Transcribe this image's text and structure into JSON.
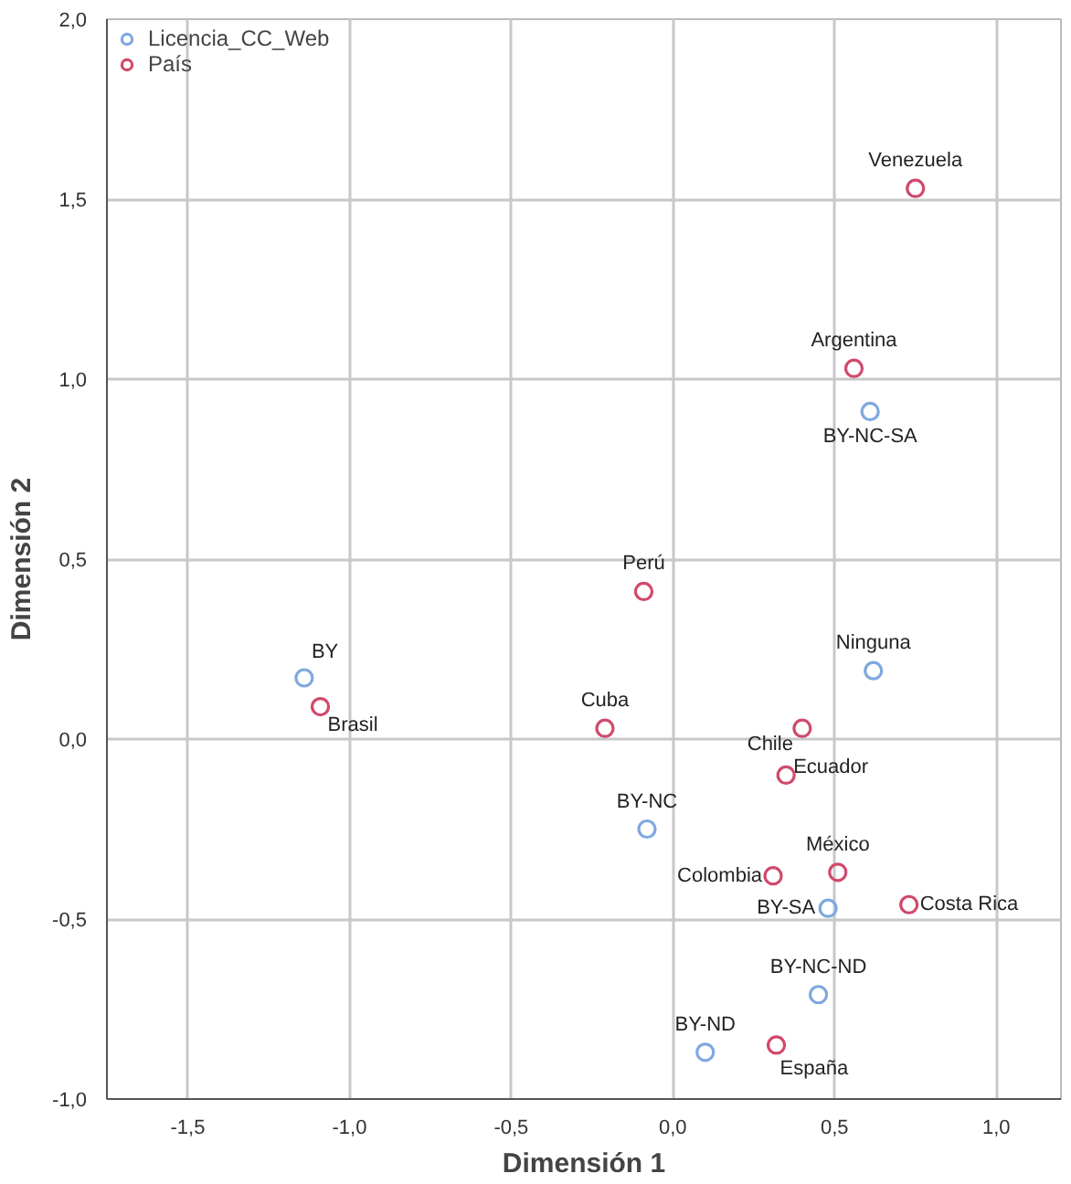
{
  "chart_data": {
    "type": "scatter",
    "xlabel": "Dimensión 1",
    "ylabel": "Dimensión 2",
    "xlim": [
      -1.75,
      1.2
    ],
    "ylim": [
      -1.0,
      2.0
    ],
    "xticks": [
      {
        "value": -1.5,
        "label": "-1,5"
      },
      {
        "value": -1.0,
        "label": "-1,0"
      },
      {
        "value": -0.5,
        "label": "-0,5"
      },
      {
        "value": 0.0,
        "label": "0,0"
      },
      {
        "value": 0.5,
        "label": "0,5"
      },
      {
        "value": 1.0,
        "label": "1,0"
      }
    ],
    "yticks": [
      {
        "value": -1.0,
        "label": "-1,0"
      },
      {
        "value": -0.5,
        "label": "-0,5"
      },
      {
        "value": 0.0,
        "label": "0,0"
      },
      {
        "value": 0.5,
        "label": "0,5"
      },
      {
        "value": 1.0,
        "label": "1,0"
      },
      {
        "value": 1.5,
        "label": "1,5"
      },
      {
        "value": 2.0,
        "label": "2,0"
      }
    ],
    "grid": true,
    "legend": "top left",
    "marker": "circle",
    "series": [
      {
        "name": "Licencia_CC_Web",
        "color": "#7fa8e0",
        "x": [
          -1.14,
          0.61,
          0.62,
          -0.08,
          0.48,
          0.45,
          0.1
        ],
        "values": [
          0.17,
          0.91,
          0.19,
          -0.25,
          -0.47,
          -0.71,
          -0.87
        ]
      },
      {
        "name": "País",
        "color": "#d1496b",
        "x": [
          0.75,
          0.56,
          -0.09,
          -1.09,
          -0.21,
          0.4,
          0.35,
          0.51,
          0.31,
          0.73,
          0.32
        ],
        "values": [
          1.53,
          1.03,
          0.41,
          0.09,
          0.03,
          0.03,
          -0.1,
          -0.37,
          -0.38,
          -0.46,
          -0.85
        ]
      }
    ],
    "annotations": [
      {
        "text": "BY",
        "x": -1.14,
        "y": 0.17
      },
      {
        "text": "BY-NC-SA",
        "x": 0.61,
        "y": 0.91
      },
      {
        "text": "Ninguna",
        "x": 0.62,
        "y": 0.19
      },
      {
        "text": "BY-NC",
        "x": -0.08,
        "y": -0.25
      },
      {
        "text": "BY-SA",
        "x": 0.48,
        "y": -0.47
      },
      {
        "text": "BY-NC-ND",
        "x": 0.45,
        "y": -0.71
      },
      {
        "text": "BY-ND",
        "x": 0.1,
        "y": -0.87
      },
      {
        "text": "Venezuela",
        "x": 0.75,
        "y": 1.53
      },
      {
        "text": "Argentina",
        "x": 0.56,
        "y": 1.03
      },
      {
        "text": "Perú",
        "x": -0.09,
        "y": 0.41
      },
      {
        "text": "Brasil",
        "x": -1.09,
        "y": 0.09
      },
      {
        "text": "Cuba",
        "x": -0.21,
        "y": 0.03
      },
      {
        "text": "Chile",
        "x": 0.4,
        "y": 0.03
      },
      {
        "text": "Ecuador",
        "x": 0.35,
        "y": -0.1
      },
      {
        "text": "México",
        "x": 0.51,
        "y": -0.37
      },
      {
        "text": "Colombia",
        "x": 0.31,
        "y": -0.38
      },
      {
        "text": "Costa Rica",
        "x": 0.73,
        "y": -0.46
      },
      {
        "text": "España",
        "x": 0.32,
        "y": -0.85
      }
    ]
  }
}
